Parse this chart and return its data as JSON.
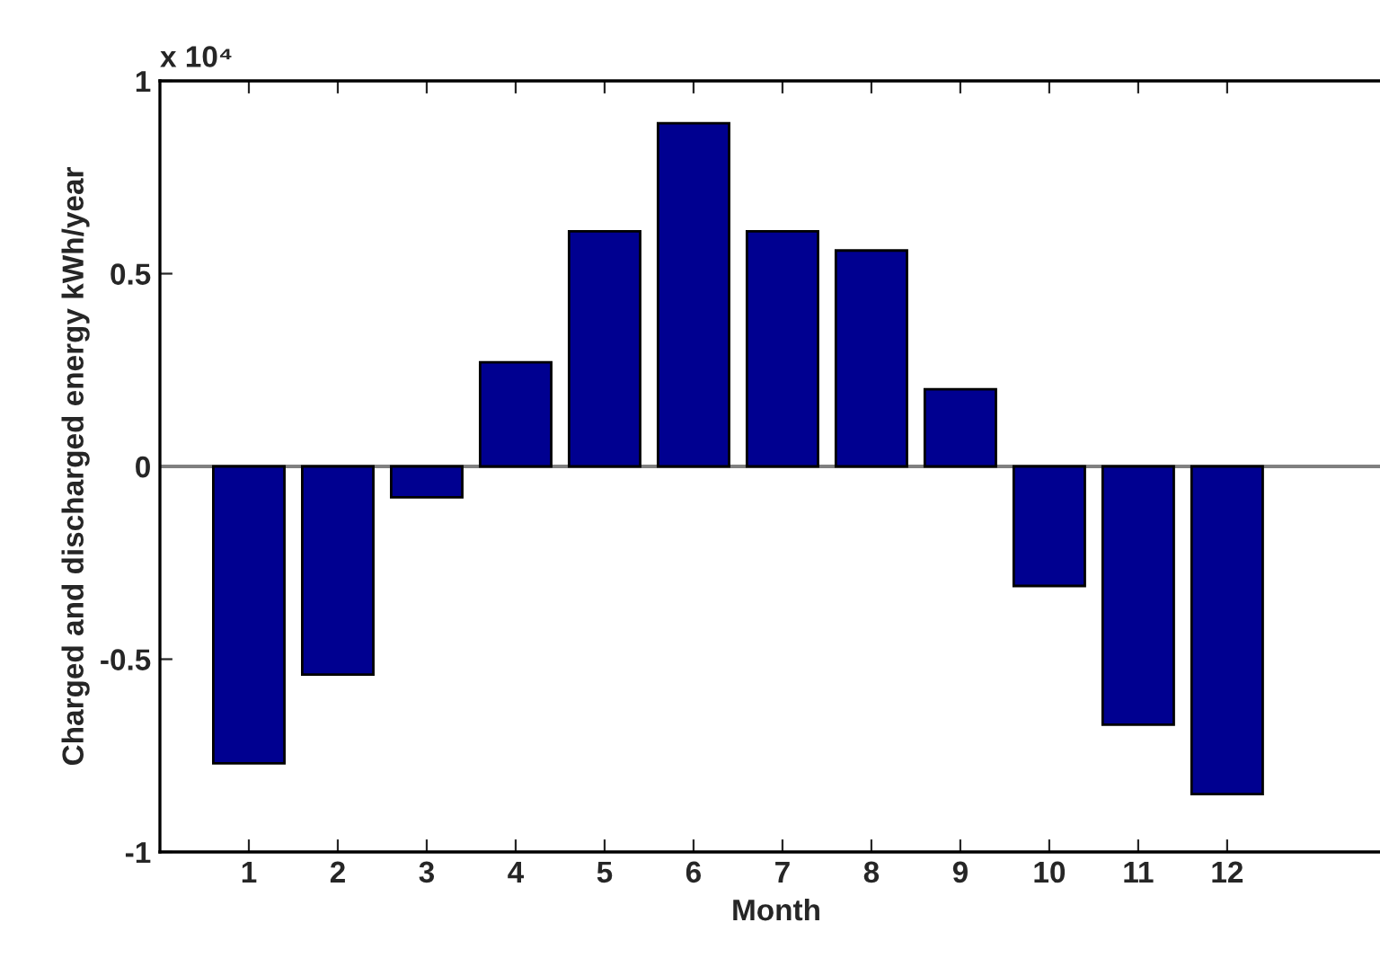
{
  "chart_data": {
    "type": "bar",
    "xlabel": "Month",
    "ylabel": "Charged and discharged energy kWh/year",
    "categories": [
      "1",
      "2",
      "3",
      "4",
      "5",
      "6",
      "7",
      "8",
      "9",
      "10",
      "11",
      "12"
    ],
    "values": [
      -0.77,
      -0.54,
      -0.08,
      0.27,
      0.61,
      0.89,
      0.61,
      0.56,
      0.2,
      -0.31,
      -0.67,
      -0.85
    ],
    "color": "#000090",
    "ylim": [
      -1,
      1
    ],
    "yticks": [
      -1,
      -0.5,
      0,
      0.5,
      1
    ],
    "annotations": [
      "x 10⁴"
    ],
    "ref_lines": [
      {
        "axis": "y",
        "value": 0,
        "color": "#808080"
      }
    ],
    "grid": false
  }
}
